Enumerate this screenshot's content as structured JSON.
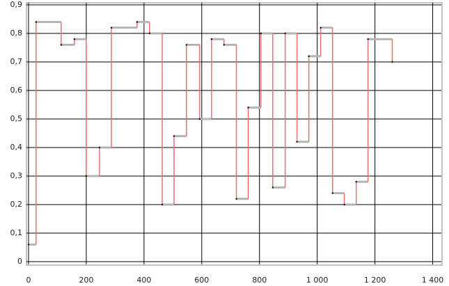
{
  "chart_data": {
    "type": "step",
    "x": [
      0,
      26,
      113,
      159,
      200,
      246,
      287,
      376,
      419,
      463,
      504,
      547,
      593,
      634,
      677,
      720,
      761,
      805,
      846,
      889,
      930,
      971,
      1012,
      1053,
      1094,
      1135,
      1176,
      1260
    ],
    "values": [
      0.06,
      0.84,
      0.76,
      0.78,
      0.3,
      0.4,
      0.82,
      0.84,
      0.8,
      0.2,
      0.44,
      0.76,
      0.5,
      0.78,
      0.76,
      0.22,
      0.54,
      0.8,
      0.26,
      0.8,
      0.42,
      0.72,
      0.82,
      0.24,
      0.2,
      0.28,
      0.78,
      0.7
    ],
    "level_color": "#b4b4b4",
    "jump_color": "#e87070",
    "point_color": "#000000",
    "xlim": [
      0,
      1430
    ],
    "xticks": [
      0,
      200,
      400,
      600,
      800,
      {
        "value": 1000,
        "label": "1 000"
      },
      {
        "value": 1200,
        "label": "1 200"
      },
      {
        "value": 1400,
        "label": "1 400"
      }
    ],
    "ylim": [
      0,
      0.9
    ],
    "yticks": [
      0,
      {
        "value": 0.1,
        "label": "0,1"
      },
      {
        "value": 0.2,
        "label": "0,2"
      },
      {
        "value": 0.3,
        "label": "0,3"
      },
      {
        "value": 0.4,
        "label": "0,4"
      },
      {
        "value": 0.5,
        "label": "0,5"
      },
      {
        "value": 0.6,
        "label": "0,6"
      },
      {
        "value": 0.7,
        "label": "0,7"
      },
      {
        "value": 0.8,
        "label": "0,8"
      },
      {
        "value": 0.9,
        "label": "0,9"
      }
    ],
    "grid": true
  }
}
